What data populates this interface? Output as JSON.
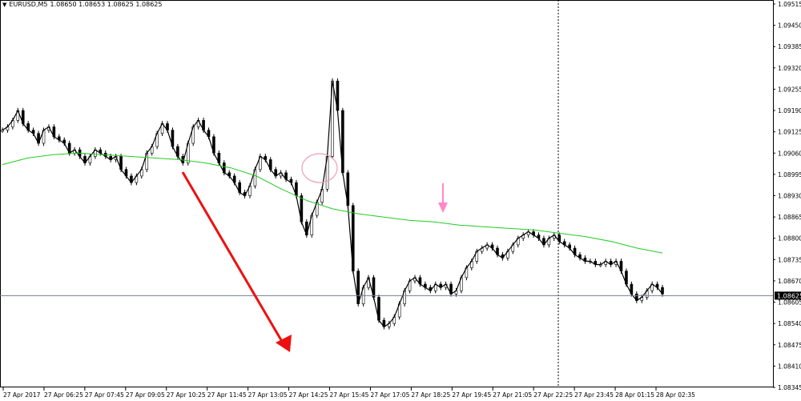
{
  "header": {
    "symbol": "EURUSD,M5",
    "quotes": "1.08650 1.08653 1.08625 1.08625"
  },
  "price_tag": "1.08625",
  "chart_data": {
    "type": "candlestick",
    "title": "",
    "grid": false,
    "ylim": [
      1.08345,
      1.09515
    ],
    "y_ticks": [
      "1.09515",
      "1.09450",
      "1.09385",
      "1.09320",
      "1.09255",
      "1.09190",
      "1.09125",
      "1.09060",
      "1.08995",
      "1.08930",
      "1.08865",
      "1.08800",
      "1.08735",
      "1.08670",
      "1.08605",
      "1.08540",
      "1.08475",
      "1.08410",
      "1.08345"
    ],
    "x_ticks": [
      "27 Apr 2017",
      "27 Apr 06:25",
      "27 Apr 07:45",
      "27 Apr 09:05",
      "27 Apr 10:25",
      "27 Apr 11:45",
      "27 Apr 13:05",
      "27 Apr 14:25",
      "27 Apr 15:45",
      "27 Apr 17:05",
      "27 Apr 18:25",
      "27 Apr 19:45",
      "27 Apr 21:05",
      "27 Apr 22:25",
      "27 Apr 23:45",
      "28 Apr 01:15",
      "28 Apr 02:35"
    ],
    "current_price": 1.08625,
    "series": [
      {
        "kind": "close_path",
        "color": "#000000",
        "values": [
          1.0913,
          1.0914,
          1.0916,
          1.0919,
          1.0915,
          1.0913,
          1.0912,
          1.0909,
          1.0913,
          1.0914,
          1.0911,
          1.091,
          1.0909,
          1.0906,
          1.0907,
          1.0905,
          1.0903,
          1.0905,
          1.0907,
          1.0906,
          1.0905,
          1.0904,
          1.0905,
          1.0901,
          1.0899,
          1.0897,
          1.0899,
          1.0901,
          1.0906,
          1.0908,
          1.0912,
          1.0915,
          1.0913,
          1.0908,
          1.0905,
          1.0903,
          1.0909,
          1.0914,
          1.0916,
          1.0913,
          1.0911,
          1.0906,
          1.0903,
          1.09,
          1.0899,
          1.0897,
          1.0894,
          1.0893,
          1.0896,
          1.0901,
          1.0905,
          1.0904,
          1.0901,
          1.0899,
          1.09,
          1.0898,
          1.0897,
          1.0893,
          1.0885,
          1.0881,
          1.0887,
          1.0891,
          1.0895,
          1.0905,
          1.0928,
          1.0919,
          1.09,
          1.089,
          1.087,
          1.086,
          1.0865,
          1.0868,
          1.0862,
          1.0855,
          1.0853,
          1.0854,
          1.0856,
          1.086,
          1.0864,
          1.0867,
          1.0868,
          1.0866,
          1.0865,
          1.0864,
          1.0866,
          1.0865,
          1.0866,
          1.0863,
          1.0864,
          1.0868,
          1.0871,
          1.0873,
          1.0876,
          1.0877,
          1.0878,
          1.0877,
          1.0875,
          1.0874,
          1.0876,
          1.0878,
          1.088,
          1.0881,
          1.0882,
          1.0881,
          1.088,
          1.0878,
          1.088,
          1.0881,
          1.0879,
          1.0878,
          1.0877,
          1.0875,
          1.0874,
          1.0873,
          1.0873,
          1.0872,
          1.0872,
          1.0873,
          1.0872,
          1.0873,
          1.087,
          1.0866,
          1.0863,
          1.0861,
          1.0862,
          1.0864,
          1.0866,
          1.0865,
          1.0863
        ]
      },
      {
        "kind": "moving_average",
        "color": "#22cc22",
        "values": [
          1.09025,
          1.09045,
          1.09055,
          1.0906,
          1.09055,
          1.0905,
          1.09045,
          1.0904,
          1.0903,
          1.09015,
          1.0899,
          1.0895,
          1.08915,
          1.0889,
          1.08875,
          1.08865,
          1.08855,
          1.0885,
          1.0884,
          1.08835,
          1.0883,
          1.08825,
          1.08815,
          1.08805,
          1.0879,
          1.0877,
          1.08755
        ]
      }
    ]
  }
}
